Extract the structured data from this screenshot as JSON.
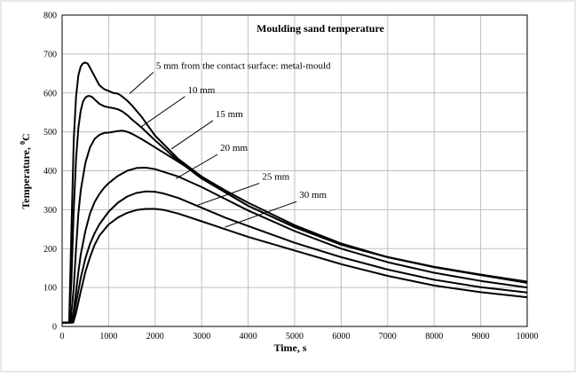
{
  "chart_data": {
    "type": "line",
    "title": "Moulding sand temperature",
    "xlabel": "Time, s",
    "ylabel_main": "Temperature, ",
    "ylabel_sup": "0",
    "ylabel_unit": "C",
    "xlim": [
      0,
      10000
    ],
    "ylim": [
      0,
      800
    ],
    "xticks": [
      0,
      1000,
      2000,
      3000,
      4000,
      5000,
      6000,
      7000,
      8000,
      9000,
      10000
    ],
    "yticks": [
      0,
      100,
      200,
      300,
      400,
      500,
      600,
      700,
      800
    ],
    "grid": true,
    "series": [
      {
        "name": "5 mm from the contact surface: metal-mould",
        "x": [
          0,
          150,
          200,
          250,
          300,
          350,
          400,
          450,
          500,
          550,
          600,
          700,
          800,
          900,
          1000,
          1100,
          1200,
          1300,
          1400,
          1500,
          1700,
          2000,
          2500,
          3000,
          3500,
          4000,
          5000,
          6000,
          7000,
          8000,
          9000,
          10000
        ],
        "y": [
          10,
          10,
          250,
          480,
          590,
          645,
          668,
          676,
          678,
          675,
          665,
          642,
          620,
          610,
          605,
          600,
          598,
          590,
          580,
          568,
          540,
          490,
          430,
          385,
          345,
          310,
          255,
          210,
          178,
          153,
          133,
          115
        ]
      },
      {
        "name": "10 mm",
        "x": [
          0,
          150,
          200,
          250,
          300,
          350,
          400,
          450,
          500,
          550,
          600,
          650,
          700,
          800,
          900,
          1000,
          1100,
          1200,
          1300,
          1400,
          1500,
          1700,
          2000,
          2500,
          3000,
          3500,
          4000,
          5000,
          6000,
          7000,
          8000,
          9000,
          10000
        ],
        "y": [
          10,
          10,
          120,
          300,
          430,
          510,
          555,
          578,
          588,
          592,
          592,
          589,
          583,
          572,
          566,
          563,
          561,
          558,
          552,
          543,
          532,
          512,
          478,
          425,
          380,
          345,
          310,
          255,
          210,
          178,
          153,
          133,
          113
        ]
      },
      {
        "name": "15 mm",
        "x": [
          0,
          180,
          250,
          300,
          350,
          400,
          500,
          600,
          700,
          800,
          900,
          1000,
          1100,
          1200,
          1300,
          1400,
          1500,
          1700,
          2000,
          2500,
          3000,
          3500,
          4000,
          5000,
          6000,
          7000,
          8000,
          9000,
          10000
        ],
        "y": [
          10,
          10,
          100,
          200,
          290,
          350,
          420,
          460,
          482,
          492,
          497,
          498,
          500,
          502,
          503,
          500,
          495,
          482,
          460,
          423,
          385,
          350,
          318,
          260,
          213,
          178,
          152,
          132,
          112
        ]
      },
      {
        "name": "20 mm",
        "x": [
          0,
          200,
          250,
          300,
          350,
          400,
          500,
          600,
          700,
          800,
          900,
          1000,
          1200,
          1400,
          1600,
          1800,
          2000,
          2500,
          3000,
          3500,
          4000,
          5000,
          6000,
          7000,
          8000,
          9000,
          10000
        ],
        "y": [
          10,
          10,
          40,
          90,
          140,
          185,
          245,
          290,
          320,
          340,
          356,
          368,
          387,
          400,
          407,
          408,
          404,
          385,
          358,
          328,
          298,
          245,
          200,
          165,
          138,
          117,
          100
        ]
      },
      {
        "name": "25 mm",
        "x": [
          0,
          220,
          300,
          400,
          500,
          600,
          700,
          800,
          1000,
          1200,
          1400,
          1600,
          1800,
          2000,
          2200,
          2500,
          3000,
          3500,
          4000,
          5000,
          6000,
          7000,
          8000,
          9000,
          10000
        ],
        "y": [
          10,
          10,
          60,
          125,
          175,
          212,
          240,
          262,
          295,
          318,
          334,
          343,
          347,
          346,
          341,
          330,
          305,
          280,
          258,
          215,
          178,
          146,
          120,
          101,
          87
        ]
      },
      {
        "name": "30 mm",
        "x": [
          0,
          240,
          300,
          400,
          500,
          600,
          700,
          800,
          1000,
          1200,
          1400,
          1600,
          1800,
          2000,
          2200,
          2500,
          3000,
          3500,
          4000,
          5000,
          6000,
          7000,
          8000,
          9000,
          10000
        ],
        "y": [
          10,
          10,
          35,
          90,
          140,
          178,
          210,
          233,
          262,
          280,
          292,
          299,
          302,
          302,
          299,
          290,
          270,
          250,
          230,
          195,
          160,
          130,
          105,
          88,
          75
        ]
      }
    ],
    "annotations": [
      {
        "text": "5 mm from the contact surface: metal-mould",
        "series": 0,
        "at_x": 1450,
        "at_y": 598,
        "label_x": 2020,
        "label_y": 662
      },
      {
        "text": "10 mm",
        "series": 1,
        "at_x": 1700,
        "at_y": 513,
        "label_x": 2700,
        "label_y": 600
      },
      {
        "text": "15 mm",
        "series": 2,
        "at_x": 2350,
        "at_y": 456,
        "label_x": 3300,
        "label_y": 538
      },
      {
        "text": "20 mm",
        "series": 3,
        "at_x": 2450,
        "at_y": 380,
        "label_x": 3400,
        "label_y": 451
      },
      {
        "text": "25 mm",
        "series": 4,
        "at_x": 2900,
        "at_y": 311,
        "label_x": 4300,
        "label_y": 377
      },
      {
        "text": "30 mm",
        "series": 5,
        "at_x": 3500,
        "at_y": 255,
        "label_x": 5100,
        "label_y": 330
      }
    ]
  }
}
